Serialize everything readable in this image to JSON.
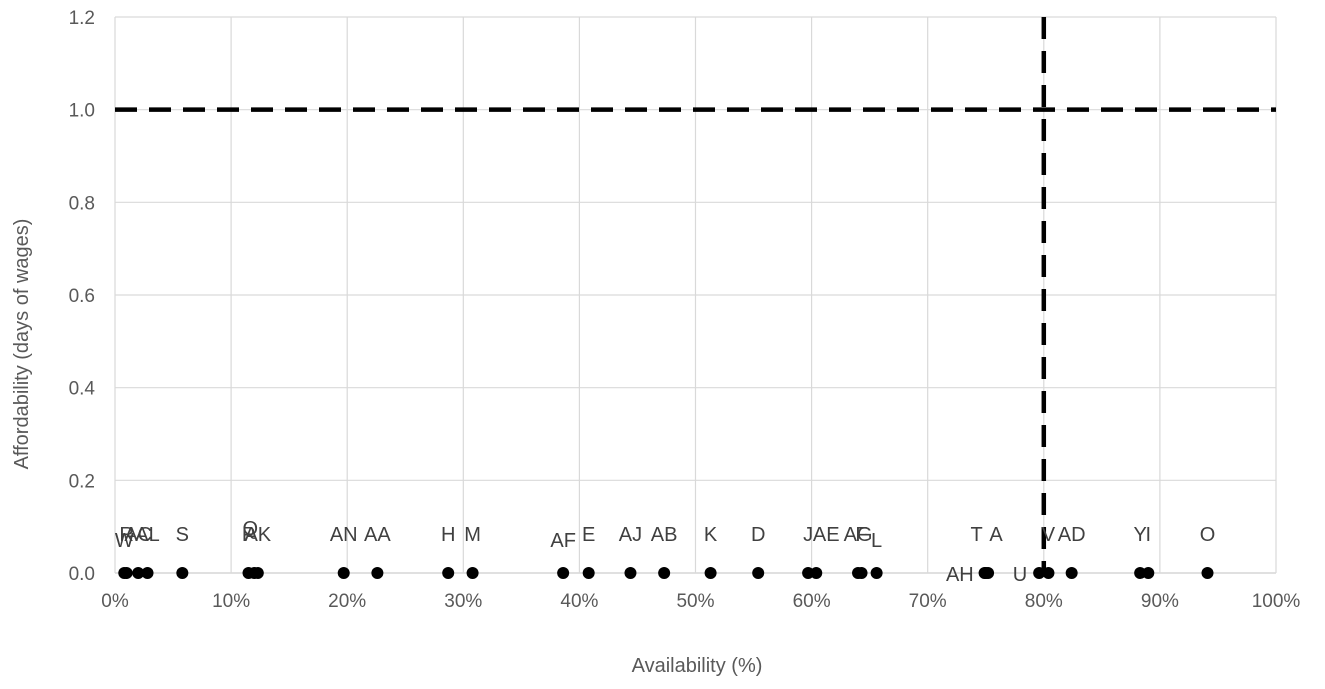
{
  "chart_data": {
    "type": "scatter",
    "title": "",
    "xlabel": "Availability (%)",
    "ylabel": "Affordability (days of wages)",
    "xlim": [
      0,
      100
    ],
    "ylim": [
      0,
      1.2
    ],
    "x_ticks": [
      {
        "value": 0,
        "label": "0%"
      },
      {
        "value": 10,
        "label": "10%"
      },
      {
        "value": 20,
        "label": "20%"
      },
      {
        "value": 30,
        "label": "30%"
      },
      {
        "value": 40,
        "label": "40%"
      },
      {
        "value": 50,
        "label": "50%"
      },
      {
        "value": 60,
        "label": "60%"
      },
      {
        "value": 70,
        "label": "70%"
      },
      {
        "value": 80,
        "label": "80%"
      },
      {
        "value": 90,
        "label": "90%"
      },
      {
        "value": 100,
        "label": "100%"
      }
    ],
    "y_ticks": [
      {
        "value": 0,
        "label": "0.0"
      },
      {
        "value": 0.2,
        "label": "0.2"
      },
      {
        "value": 0.4,
        "label": "0.4"
      },
      {
        "value": 0.6,
        "label": "0.6"
      },
      {
        "value": 0.8,
        "label": "0.8"
      },
      {
        "value": 1.0,
        "label": "1.0"
      },
      {
        "value": 1.2,
        "label": "1.2"
      }
    ],
    "grid": true,
    "legend": "none",
    "reference_lines": [
      {
        "axis": "y",
        "value": 1.0,
        "style": "dashed",
        "color": "#000000"
      },
      {
        "axis": "x",
        "value": 80,
        "style": "dashed",
        "color": "#000000"
      }
    ],
    "marker_color": "#000000",
    "label_color": "#404040",
    "grid_color": "#d9d9d9",
    "points": [
      {
        "label": "W",
        "x": 0.8,
        "y": 0,
        "label_pos": "above",
        "label_dx": 0,
        "label_dy": 0
      },
      {
        "label": "R",
        "x": 1.0,
        "y": 0,
        "label_pos": "above",
        "label_dx": 0,
        "label_dy": -6
      },
      {
        "label": "AC",
        "x": 2.0,
        "y": 0,
        "label_pos": "above",
        "label_dx": 0,
        "label_dy": -6
      },
      {
        "label": "AL",
        "x": 2.8,
        "y": 0,
        "label_pos": "above",
        "label_dx": 0,
        "label_dy": -6
      },
      {
        "label": "S",
        "x": 5.8,
        "y": 0,
        "label_pos": "above",
        "label_dx": 0,
        "label_dy": -6
      },
      {
        "label": "P",
        "x": 11.5,
        "y": 0,
        "label_pos": "above",
        "label_dx": 0,
        "label_dy": -6
      },
      {
        "label": "Q",
        "x": 12.0,
        "y": 0,
        "label_pos": "above",
        "label_dx": -4,
        "label_dy": -12
      },
      {
        "label": "AK",
        "x": 12.3,
        "y": 0,
        "label_pos": "above",
        "label_dx": 0,
        "label_dy": -6
      },
      {
        "label": "AN",
        "x": 19.7,
        "y": 0,
        "label_pos": "above",
        "label_dx": 0,
        "label_dy": -6
      },
      {
        "label": "AA",
        "x": 22.6,
        "y": 0,
        "label_pos": "above",
        "label_dx": 0,
        "label_dy": -6
      },
      {
        "label": "H",
        "x": 28.7,
        "y": 0,
        "label_pos": "above",
        "label_dx": 0,
        "label_dy": -6
      },
      {
        "label": "M",
        "x": 30.8,
        "y": 0,
        "label_pos": "above",
        "label_dx": 0,
        "label_dy": -6
      },
      {
        "label": "AF",
        "x": 38.6,
        "y": 0,
        "label_pos": "above",
        "label_dx": 0,
        "label_dy": 0
      },
      {
        "label": "E",
        "x": 40.8,
        "y": 0,
        "label_pos": "above",
        "label_dx": 0,
        "label_dy": -6
      },
      {
        "label": "AJ",
        "x": 44.4,
        "y": 0,
        "label_pos": "above",
        "label_dx": 0,
        "label_dy": -6
      },
      {
        "label": "AB",
        "x": 47.3,
        "y": 0,
        "label_pos": "above",
        "label_dx": 0,
        "label_dy": -6
      },
      {
        "label": "K",
        "x": 51.3,
        "y": 0,
        "label_pos": "above",
        "label_dx": 0,
        "label_dy": -6
      },
      {
        "label": "D",
        "x": 55.4,
        "y": 0,
        "label_pos": "above",
        "label_dx": 0,
        "label_dy": -6
      },
      {
        "label": "J",
        "x": 59.7,
        "y": 0,
        "label_pos": "above",
        "label_dx": 0,
        "label_dy": -6
      },
      {
        "label": "AE",
        "x": 60.4,
        "y": 0,
        "label_pos": "above",
        "label_dx": 10,
        "label_dy": -6
      },
      {
        "label": "AG",
        "x": 64.0,
        "y": 0,
        "label_pos": "above",
        "label_dx": 0,
        "label_dy": -6
      },
      {
        "label": "F",
        "x": 64.3,
        "y": 0,
        "label_pos": "above",
        "label_dx": 0,
        "label_dy": -6
      },
      {
        "label": "L",
        "x": 65.6,
        "y": 0,
        "label_pos": "above",
        "label_dx": 0,
        "label_dy": 0
      },
      {
        "label": "AH",
        "x": 75.0,
        "y": 0,
        "label_pos": "left",
        "label_dx": 0,
        "label_dy": 0
      },
      {
        "label": "T",
        "x": 74.9,
        "y": 0,
        "label_pos": "above",
        "label_dx": -8,
        "label_dy": -6
      },
      {
        "label": "A",
        "x": 75.2,
        "y": 0,
        "label_pos": "above",
        "label_dx": 8,
        "label_dy": -6
      },
      {
        "label": "U",
        "x": 79.6,
        "y": 0,
        "label_pos": "left",
        "label_dx": 0,
        "label_dy": 0
      },
      {
        "label": "V",
        "x": 80.4,
        "y": 0,
        "label_pos": "above",
        "label_dx": 0,
        "label_dy": -6
      },
      {
        "label": "AD",
        "x": 82.4,
        "y": 0,
        "label_pos": "above",
        "label_dx": 0,
        "label_dy": -6
      },
      {
        "label": "Y",
        "x": 88.3,
        "y": 0,
        "label_pos": "above",
        "label_dx": 0,
        "label_dy": -6
      },
      {
        "label": "I",
        "x": 89.0,
        "y": 0,
        "label_pos": "above",
        "label_dx": 0,
        "label_dy": -6
      },
      {
        "label": "O",
        "x": 94.1,
        "y": 0,
        "label_pos": "above",
        "label_dx": 0,
        "label_dy": -6
      }
    ]
  }
}
